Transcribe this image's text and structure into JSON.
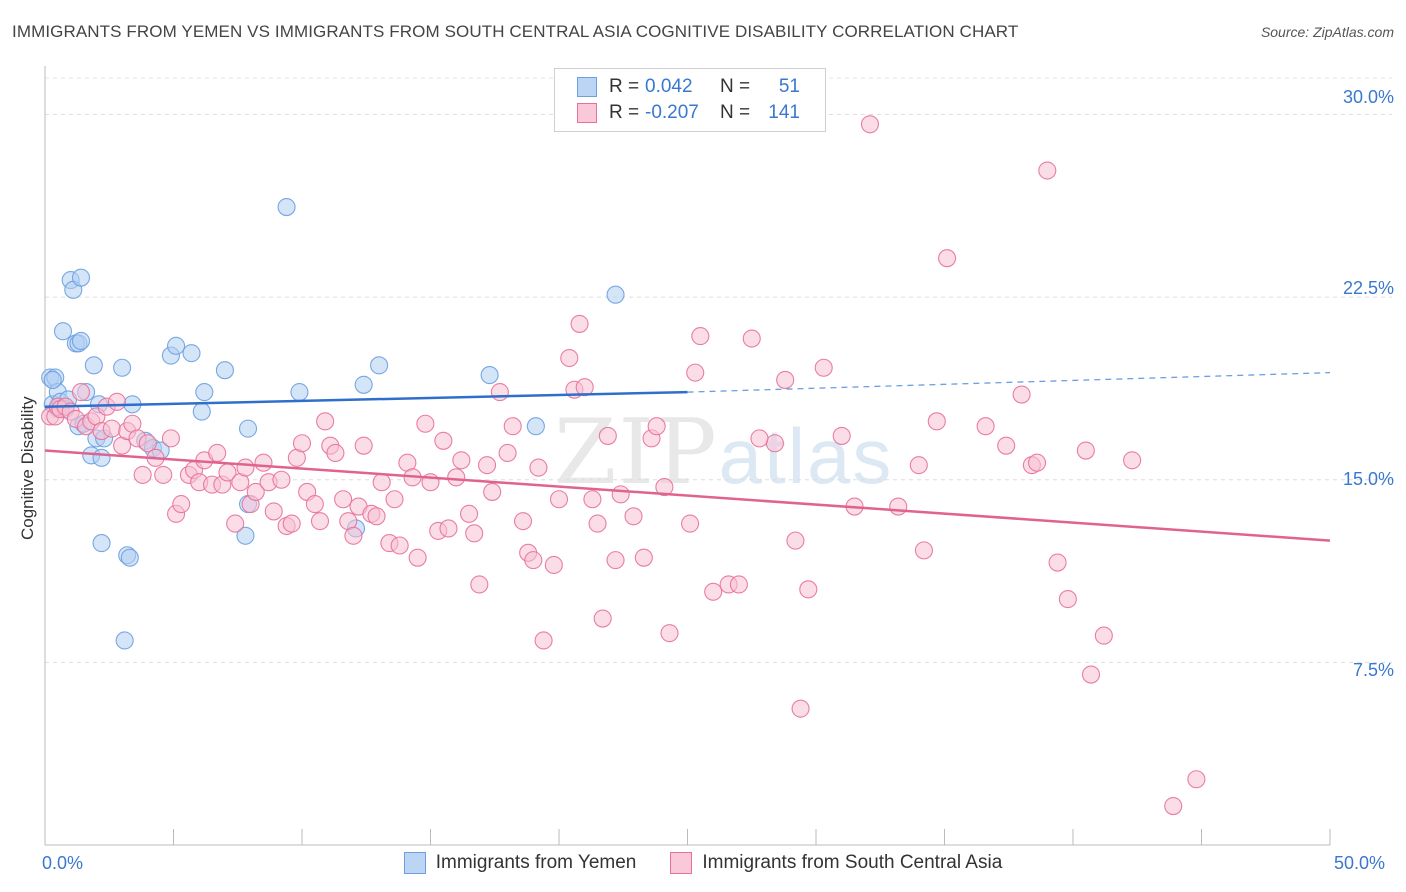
{
  "header": {
    "title": "IMMIGRANTS FROM YEMEN VS IMMIGRANTS FROM SOUTH CENTRAL ASIA COGNITIVE DISABILITY CORRELATION CHART",
    "source": "Source: ZipAtlas.com"
  },
  "legend": {
    "rows": [
      {
        "r_label": "R =",
        "r_value": "0.042",
        "n_label": "N =",
        "n_value": "51",
        "color": "#8fb8ea"
      },
      {
        "r_label": "R =",
        "r_value": "-0.207",
        "n_label": "N =",
        "n_value": "141",
        "color": "#f3a9c3"
      }
    ]
  },
  "watermark": {
    "zip": "ZIP",
    "atlas": "atlas"
  },
  "chart_data": {
    "type": "scatter",
    "title": "IMMIGRANTS FROM YEMEN VS IMMIGRANTS FROM SOUTH CENTRAL ASIA COGNITIVE DISABILITY CORRELATION CHART",
    "xlabel": "",
    "ylabel": "Cognitive Disability",
    "xlim": [
      0,
      50
    ],
    "ylim": [
      0,
      31.5
    ],
    "x_ticks": [
      "0.0%",
      "50.0%"
    ],
    "y_ticks": [
      "7.5%",
      "15.0%",
      "22.5%",
      "30.0%"
    ],
    "y_tick_values": [
      7.5,
      15.0,
      22.5,
      30.0
    ],
    "grid": true,
    "legend_position": "top-center",
    "series": [
      {
        "name": "Immigrants from Yemen",
        "color": "#6a9fe0",
        "fill": "#b3cff2",
        "trend": {
          "x": [
            0,
            25
          ],
          "y": [
            18.0,
            18.6
          ],
          "dashed_to": [
            50,
            19.4
          ]
        },
        "points": [
          [
            0.2,
            19.2
          ],
          [
            0.3,
            18.1
          ],
          [
            0.4,
            19.2
          ],
          [
            0.5,
            17.9
          ],
          [
            0.5,
            18.6
          ],
          [
            0.6,
            18.2
          ],
          [
            0.7,
            21.1
          ],
          [
            0.8,
            17.9
          ],
          [
            0.9,
            18.3
          ],
          [
            1.0,
            23.2
          ],
          [
            1.1,
            22.8
          ],
          [
            1.2,
            20.6
          ],
          [
            1.3,
            20.6
          ],
          [
            1.3,
            17.2
          ],
          [
            1.4,
            23.3
          ],
          [
            1.4,
            20.7
          ],
          [
            1.5,
            17.3
          ],
          [
            1.6,
            18.6
          ],
          [
            1.8,
            16.0
          ],
          [
            1.9,
            19.7
          ],
          [
            2.0,
            16.7
          ],
          [
            2.1,
            18.1
          ],
          [
            2.2,
            15.9
          ],
          [
            2.2,
            12.4
          ],
          [
            2.3,
            16.7
          ],
          [
            3.0,
            19.6
          ],
          [
            3.1,
            8.4
          ],
          [
            3.2,
            11.9
          ],
          [
            3.3,
            11.8
          ],
          [
            3.4,
            18.1
          ],
          [
            3.9,
            16.6
          ],
          [
            4.2,
            16.3
          ],
          [
            4.5,
            16.2
          ],
          [
            4.9,
            20.1
          ],
          [
            5.1,
            20.5
          ],
          [
            5.7,
            20.2
          ],
          [
            6.1,
            17.8
          ],
          [
            6.2,
            18.6
          ],
          [
            7.0,
            19.5
          ],
          [
            7.8,
            12.7
          ],
          [
            7.9,
            14.0
          ],
          [
            7.9,
            17.1
          ],
          [
            9.4,
            26.2
          ],
          [
            9.9,
            18.6
          ],
          [
            12.1,
            13.0
          ],
          [
            12.4,
            18.9
          ],
          [
            13.0,
            19.7
          ],
          [
            17.3,
            19.3
          ],
          [
            19.1,
            17.2
          ],
          [
            22.2,
            22.6
          ],
          [
            0.3,
            19.1
          ]
        ]
      },
      {
        "name": "Immigrants from South Central Asia",
        "color": "#e8709a",
        "fill": "#f7c1d3",
        "trend": {
          "x": [
            0,
            50
          ],
          "y": [
            16.2,
            12.5
          ]
        },
        "points": [
          [
            0.2,
            17.6
          ],
          [
            0.4,
            17.6
          ],
          [
            0.5,
            18.0
          ],
          [
            0.6,
            17.9
          ],
          [
            0.8,
            18.0
          ],
          [
            1.0,
            17.8
          ],
          [
            1.2,
            17.5
          ],
          [
            1.4,
            18.6
          ],
          [
            1.6,
            17.2
          ],
          [
            1.8,
            17.4
          ],
          [
            2.0,
            17.6
          ],
          [
            2.2,
            17.0
          ],
          [
            2.4,
            18.0
          ],
          [
            2.6,
            17.1
          ],
          [
            2.8,
            18.2
          ],
          [
            3.0,
            16.4
          ],
          [
            3.2,
            17.0
          ],
          [
            3.4,
            17.3
          ],
          [
            3.6,
            16.7
          ],
          [
            3.8,
            15.2
          ],
          [
            4.0,
            16.5
          ],
          [
            4.3,
            15.9
          ],
          [
            4.6,
            15.2
          ],
          [
            4.9,
            16.7
          ],
          [
            5.1,
            13.6
          ],
          [
            5.3,
            14.0
          ],
          [
            5.6,
            15.2
          ],
          [
            5.8,
            15.4
          ],
          [
            6.0,
            14.9
          ],
          [
            6.2,
            15.8
          ],
          [
            6.5,
            14.8
          ],
          [
            6.7,
            16.1
          ],
          [
            6.9,
            14.8
          ],
          [
            7.1,
            15.3
          ],
          [
            7.4,
            13.2
          ],
          [
            7.6,
            14.9
          ],
          [
            7.8,
            15.5
          ],
          [
            8.0,
            14.0
          ],
          [
            8.2,
            14.5
          ],
          [
            8.5,
            15.7
          ],
          [
            8.7,
            14.9
          ],
          [
            8.9,
            13.7
          ],
          [
            9.2,
            15.0
          ],
          [
            9.4,
            13.1
          ],
          [
            9.6,
            13.2
          ],
          [
            9.8,
            15.9
          ],
          [
            10.0,
            16.5
          ],
          [
            10.2,
            14.5
          ],
          [
            10.5,
            14.0
          ],
          [
            10.7,
            13.3
          ],
          [
            10.9,
            17.4
          ],
          [
            11.1,
            16.4
          ],
          [
            11.3,
            16.1
          ],
          [
            11.6,
            14.2
          ],
          [
            11.8,
            13.3
          ],
          [
            12.0,
            12.7
          ],
          [
            12.2,
            13.9
          ],
          [
            12.4,
            16.4
          ],
          [
            12.7,
            13.6
          ],
          [
            12.9,
            13.5
          ],
          [
            13.1,
            14.9
          ],
          [
            13.4,
            12.4
          ],
          [
            13.6,
            14.2
          ],
          [
            13.8,
            12.3
          ],
          [
            14.1,
            15.7
          ],
          [
            14.3,
            15.1
          ],
          [
            14.5,
            11.8
          ],
          [
            14.8,
            17.3
          ],
          [
            15.0,
            14.9
          ],
          [
            15.3,
            12.9
          ],
          [
            15.5,
            16.6
          ],
          [
            15.7,
            13.0
          ],
          [
            16.0,
            15.1
          ],
          [
            16.2,
            15.8
          ],
          [
            16.5,
            13.6
          ],
          [
            16.7,
            12.8
          ],
          [
            16.9,
            10.7
          ],
          [
            17.2,
            15.6
          ],
          [
            17.4,
            14.5
          ],
          [
            17.7,
            18.6
          ],
          [
            18.0,
            16.1
          ],
          [
            18.2,
            17.2
          ],
          [
            18.6,
            13.3
          ],
          [
            18.8,
            12.0
          ],
          [
            19.0,
            11.7
          ],
          [
            19.2,
            15.5
          ],
          [
            19.4,
            8.4
          ],
          [
            19.8,
            11.5
          ],
          [
            20.0,
            14.2
          ],
          [
            20.4,
            20.0
          ],
          [
            20.6,
            18.7
          ],
          [
            20.8,
            21.4
          ],
          [
            21.0,
            18.8
          ],
          [
            21.3,
            14.2
          ],
          [
            21.5,
            13.2
          ],
          [
            21.7,
            9.3
          ],
          [
            21.9,
            16.8
          ],
          [
            22.2,
            11.7
          ],
          [
            22.4,
            14.4
          ],
          [
            22.9,
            13.5
          ],
          [
            23.3,
            11.8
          ],
          [
            23.6,
            16.7
          ],
          [
            23.8,
            17.2
          ],
          [
            24.1,
            14.7
          ],
          [
            24.3,
            8.7
          ],
          [
            25.1,
            13.2
          ],
          [
            25.3,
            19.4
          ],
          [
            25.5,
            20.9
          ],
          [
            26.0,
            10.4
          ],
          [
            26.6,
            10.7
          ],
          [
            27.0,
            10.7
          ],
          [
            27.5,
            20.8
          ],
          [
            28.4,
            16.5
          ],
          [
            28.8,
            19.1
          ],
          [
            29.2,
            12.5
          ],
          [
            29.4,
            5.6
          ],
          [
            29.7,
            10.5
          ],
          [
            30.3,
            19.6
          ],
          [
            31.0,
            16.8
          ],
          [
            31.5,
            13.9
          ],
          [
            32.1,
            29.6
          ],
          [
            33.2,
            13.9
          ],
          [
            34.2,
            12.1
          ],
          [
            34.7,
            17.4
          ],
          [
            35.1,
            24.1
          ],
          [
            36.6,
            17.2
          ],
          [
            37.4,
            16.4
          ],
          [
            38.0,
            18.5
          ],
          [
            38.4,
            15.6
          ],
          [
            38.6,
            15.7
          ],
          [
            39.0,
            27.7
          ],
          [
            39.4,
            11.6
          ],
          [
            39.8,
            10.1
          ],
          [
            40.5,
            16.2
          ],
          [
            40.7,
            7.0
          ],
          [
            41.2,
            8.6
          ],
          [
            43.9,
            1.6
          ],
          [
            44.8,
            2.7
          ],
          [
            42.3,
            15.8
          ],
          [
            34.0,
            15.6
          ],
          [
            27.8,
            16.7
          ]
        ]
      }
    ]
  },
  "axes": {
    "ylabel": "Cognitive Disability",
    "x_min_label": "0.0%",
    "x_max_label": "50.0%",
    "y_labels": [
      "7.5%",
      "15.0%",
      "22.5%",
      "30.0%"
    ]
  }
}
